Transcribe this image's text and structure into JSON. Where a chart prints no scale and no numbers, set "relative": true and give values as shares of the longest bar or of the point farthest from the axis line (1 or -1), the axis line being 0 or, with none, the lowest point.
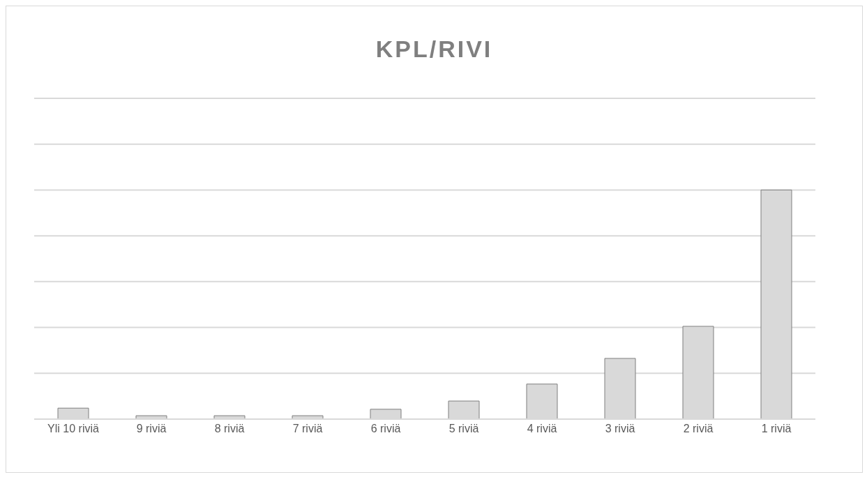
{
  "chart_data": {
    "type": "bar",
    "title": "KPL/RIVI",
    "relative": true,
    "grid": "y",
    "categories": [
      "Yli 10 riviä",
      "9 riviä",
      "8 riviä",
      "7 riviä",
      "6 riviä",
      "5 riviä",
      "4 riviä",
      "3 riviä",
      "2 riviä",
      "1 riviä"
    ],
    "values": [
      0.048,
      0.015,
      0.015,
      0.015,
      0.043,
      0.079,
      0.153,
      0.265,
      0.405,
      1
    ],
    "color": "#d9d9d9"
  }
}
